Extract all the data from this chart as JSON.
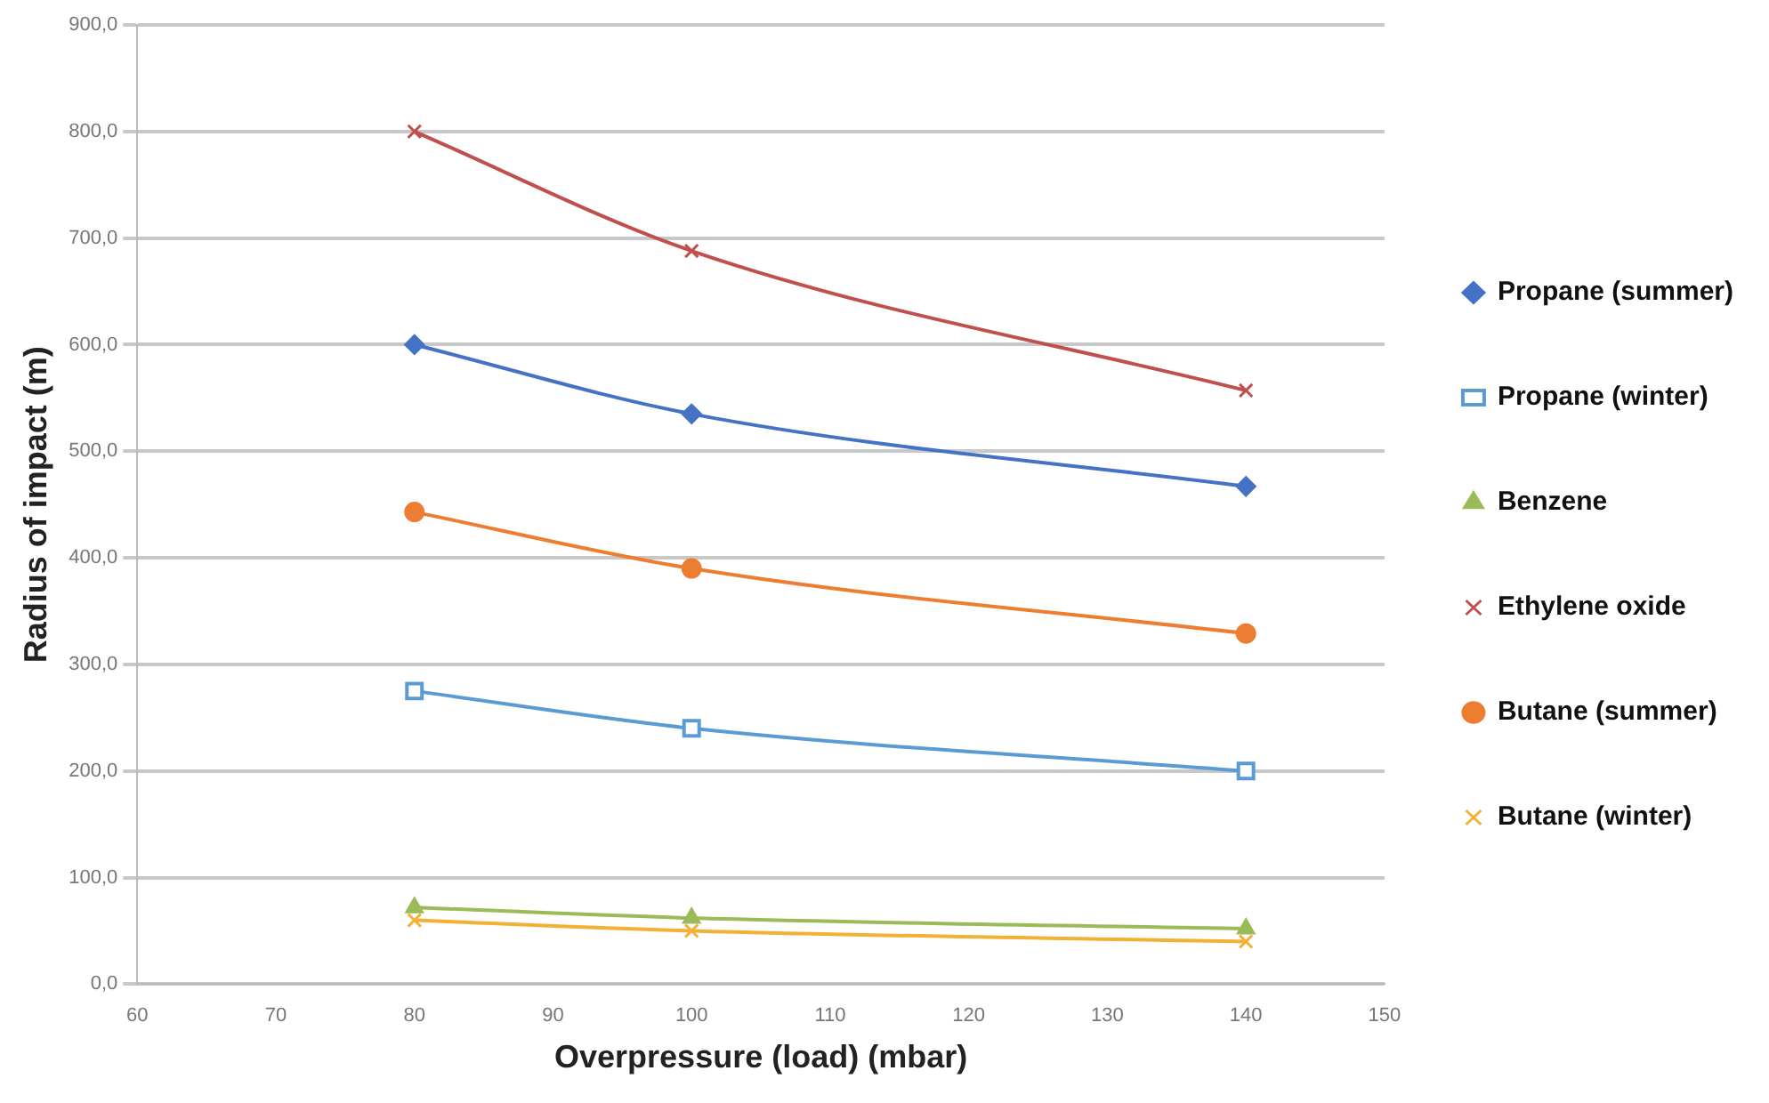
{
  "chart_data": {
    "type": "line",
    "xlabel": "Overpressure (load) (mbar)",
    "ylabel": "Radius of impact (m)",
    "x": [
      80,
      100,
      140
    ],
    "xlim": [
      60,
      150
    ],
    "xticks": [
      60,
      70,
      80,
      90,
      100,
      110,
      120,
      130,
      140,
      150
    ],
    "ylim": [
      0,
      900
    ],
    "yticks": [
      {
        "value": 0,
        "label": "0,0"
      },
      {
        "value": 100,
        "label": "100,0"
      },
      {
        "value": 200,
        "label": "200,0"
      },
      {
        "value": 300,
        "label": "300,0"
      },
      {
        "value": 400,
        "label": "400,0"
      },
      {
        "value": 500,
        "label": "500,0"
      },
      {
        "value": 600,
        "label": "600,0"
      },
      {
        "value": 700,
        "label": "700,0"
      },
      {
        "value": 800,
        "label": "800,0"
      },
      {
        "value": 900,
        "label": "900,0"
      }
    ],
    "grid": "y",
    "legend": "right",
    "line_style": "solid",
    "series": [
      {
        "name": "Propane (summer)",
        "color": "#4472c4",
        "marker": "diamond",
        "values": [
          600,
          535,
          467
        ]
      },
      {
        "name": "Propane (winter)",
        "color": "#5b9bd5",
        "marker": "square",
        "values": [
          275,
          240,
          200
        ]
      },
      {
        "name": "Benzene",
        "color": "#9bbb59",
        "marker": "triangle",
        "values": [
          72,
          62,
          52
        ]
      },
      {
        "name": "Ethylene oxide",
        "color": "#c0504d",
        "marker": "cross",
        "values": [
          800,
          688,
          557
        ]
      },
      {
        "name": "Butane (summer)",
        "color": "#ed7d31",
        "marker": "circle",
        "values": [
          443,
          390,
          329
        ]
      },
      {
        "name": "Butane (winter)",
        "color": "#f2b134",
        "marker": "cross",
        "values": [
          60,
          50,
          40
        ]
      }
    ]
  }
}
